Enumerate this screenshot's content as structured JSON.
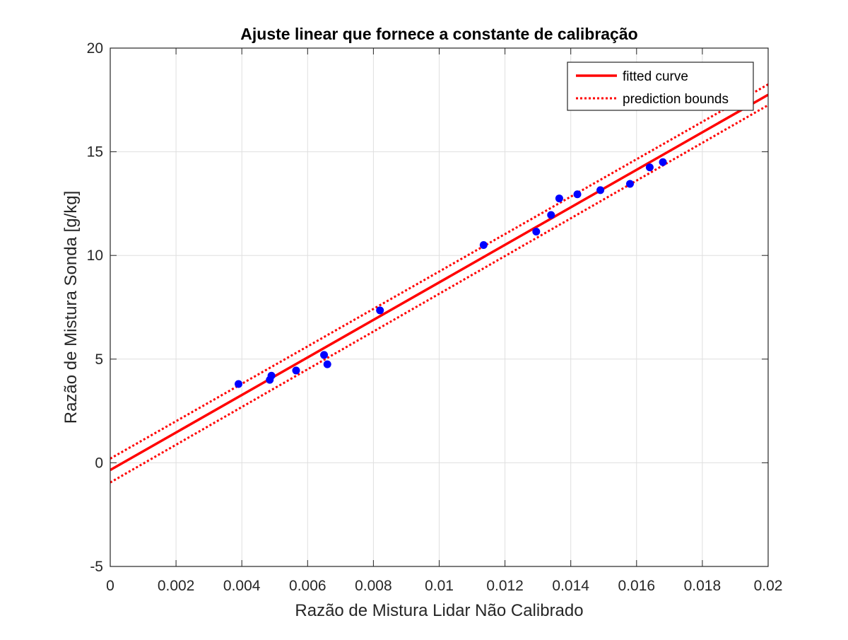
{
  "chart_data": {
    "type": "scatter",
    "title": "Ajuste linear que fornece a constante de calibração",
    "xlabel": "Razão de Mistura Lidar Não Calibrado",
    "ylabel": "Razão de Mistura Sonda [g/kg]",
    "xlim": [
      0,
      0.02
    ],
    "ylim": [
      -5,
      20
    ],
    "x_ticks": [
      0,
      0.002,
      0.004,
      0.006,
      0.008,
      0.01,
      0.012,
      0.014,
      0.016,
      0.018,
      0.02
    ],
    "x_tick_labels": [
      "0",
      "0.002",
      "0.004",
      "0.006",
      "0.008",
      "0.01",
      "0.012",
      "0.014",
      "0.016",
      "0.018",
      "0.02"
    ],
    "y_ticks": [
      -5,
      0,
      5,
      10,
      15,
      20
    ],
    "y_tick_labels": [
      "-5",
      "0",
      "5",
      "10",
      "15",
      "20"
    ],
    "grid": true,
    "legend_position": "top-right",
    "series": [
      {
        "kind": "points",
        "color": "#0000ff",
        "x": [
          0.0039,
          0.00485,
          0.0049,
          0.00565,
          0.0065,
          0.0066,
          0.0082,
          0.01135,
          0.01295,
          0.0134,
          0.01365,
          0.0142,
          0.0149,
          0.0158,
          0.0164,
          0.0168
        ],
        "y": [
          3.8,
          4.0,
          4.2,
          4.45,
          5.2,
          4.75,
          7.35,
          10.5,
          11.15,
          11.95,
          12.75,
          12.95,
          13.15,
          13.45,
          14.25,
          14.5
        ]
      },
      {
        "name": "fitted curve",
        "kind": "line",
        "style": "solid",
        "color": "#ff0000",
        "x": [
          0,
          0.02
        ],
        "y": [
          -0.35,
          17.75
        ]
      },
      {
        "name": "prediction bounds",
        "kind": "line",
        "style": "dotted",
        "color": "#ff0000",
        "x": [
          0,
          0.02
        ],
        "y": [
          0.2,
          18.25
        ]
      },
      {
        "kind": "line",
        "style": "dotted",
        "color": "#ff0000",
        "x": [
          0,
          0.02
        ],
        "y": [
          -0.95,
          17.25
        ]
      }
    ],
    "legend": [
      {
        "label": "fitted curve",
        "style": "solid",
        "color": "#ff0000"
      },
      {
        "label": "prediction bounds",
        "style": "dotted",
        "color": "#ff0000"
      }
    ]
  }
}
